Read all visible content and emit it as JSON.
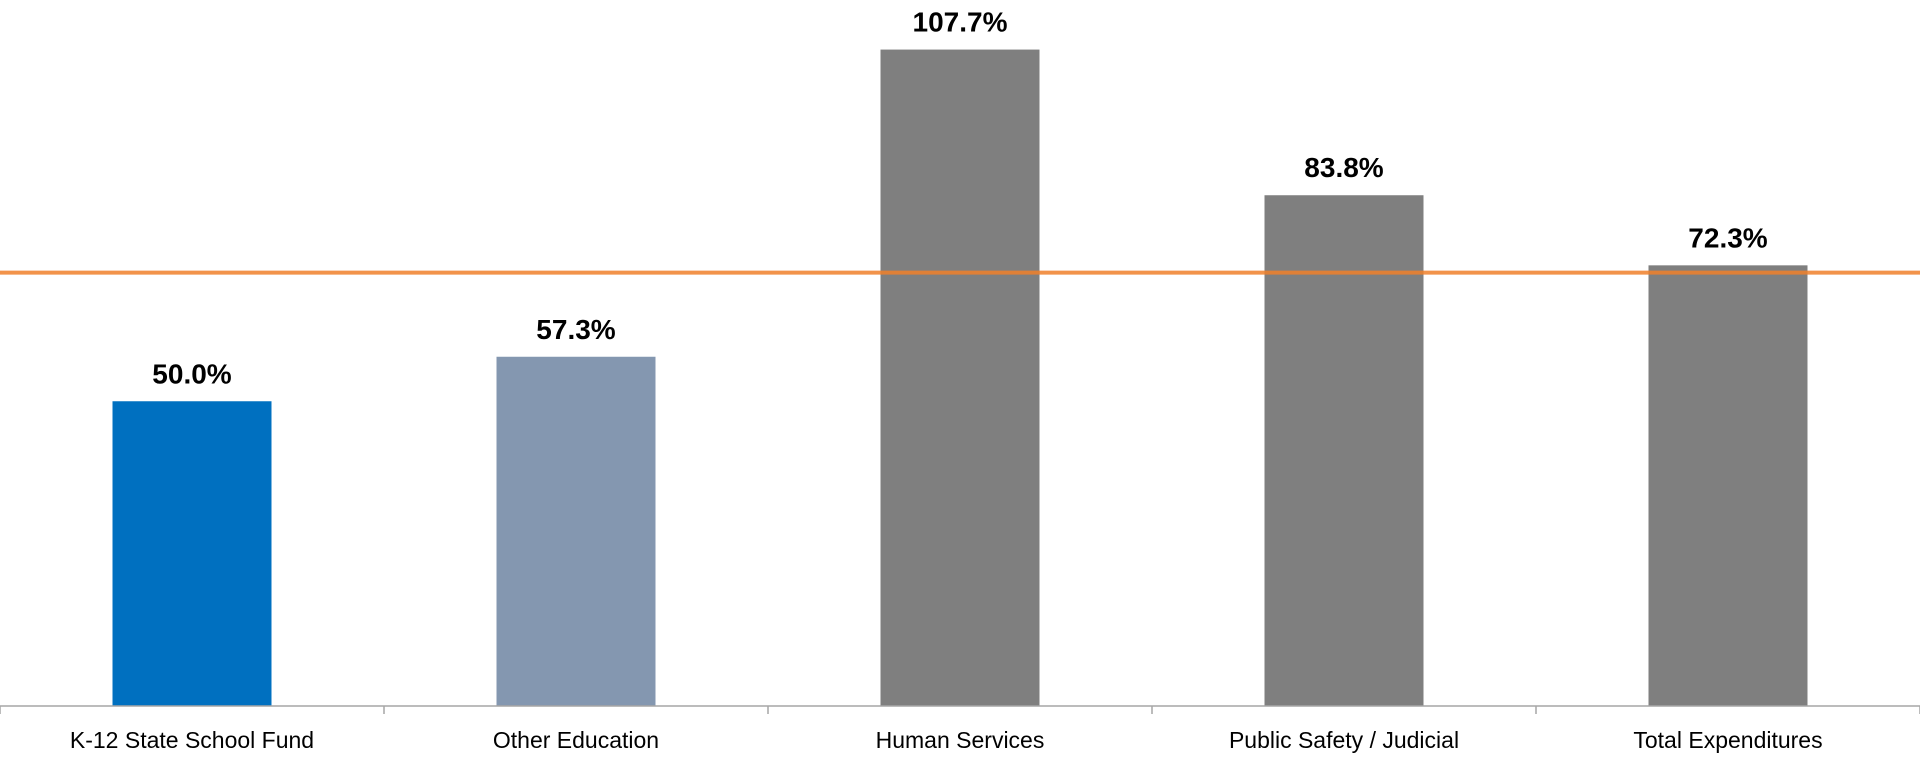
{
  "chart_data": {
    "type": "bar",
    "categories": [
      "K-12 State School Fund",
      "Other Education",
      "Human Services",
      "Public Safety / Judicial",
      "Total Expenditures"
    ],
    "values": [
      50.0,
      57.3,
      107.7,
      83.8,
      72.3
    ],
    "value_labels": [
      "50.0%",
      "57.3%",
      "107.7%",
      "83.8%",
      "72.3%"
    ],
    "bar_colors": [
      "#0070C0",
      "#8497B0",
      "#7F7F7F",
      "#7F7F7F",
      "#7F7F7F"
    ],
    "reference_line": {
      "value": 71.1,
      "color": "#F0802A"
    },
    "title": "",
    "xlabel": "",
    "ylabel": "",
    "ylim": [
      0,
      115
    ],
    "grid": false,
    "legend": "none"
  }
}
